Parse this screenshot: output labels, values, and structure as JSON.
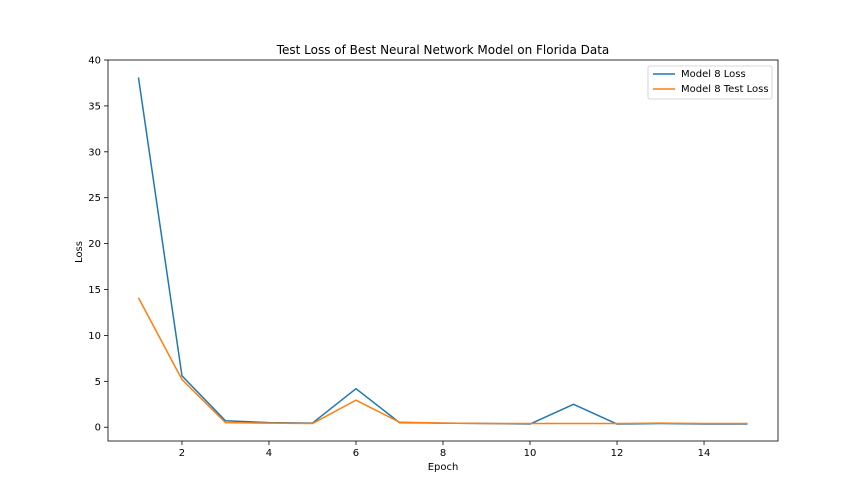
{
  "chart_data": {
    "type": "line",
    "title": "Test Loss of Best Neural Network Model on Florida Data",
    "xlabel": "Epoch",
    "ylabel": "Loss",
    "xlim": [
      0.3,
      15.7
    ],
    "ylim": [
      -1.5,
      40
    ],
    "xticks": [
      2,
      4,
      6,
      8,
      10,
      12,
      14
    ],
    "yticks": [
      0,
      5,
      10,
      15,
      20,
      25,
      30,
      35,
      40
    ],
    "grid": false,
    "legend_position": "top-right",
    "x": [
      1,
      2,
      3,
      4,
      5,
      6,
      7,
      8,
      9,
      10,
      11,
      12,
      13,
      14,
      15
    ],
    "series": [
      {
        "name": "Model 8 Loss",
        "color": "#1f77b4",
        "values": [
          38.1,
          5.6,
          0.7,
          0.5,
          0.45,
          4.2,
          0.5,
          0.45,
          0.4,
          0.35,
          2.5,
          0.35,
          0.4,
          0.35,
          0.35
        ]
      },
      {
        "name": "Model 8 Test Loss",
        "color": "#ff7f0e",
        "values": [
          14.1,
          5.2,
          0.5,
          0.45,
          0.4,
          2.95,
          0.55,
          0.45,
          0.4,
          0.4,
          0.4,
          0.4,
          0.45,
          0.4,
          0.4
        ]
      }
    ]
  }
}
